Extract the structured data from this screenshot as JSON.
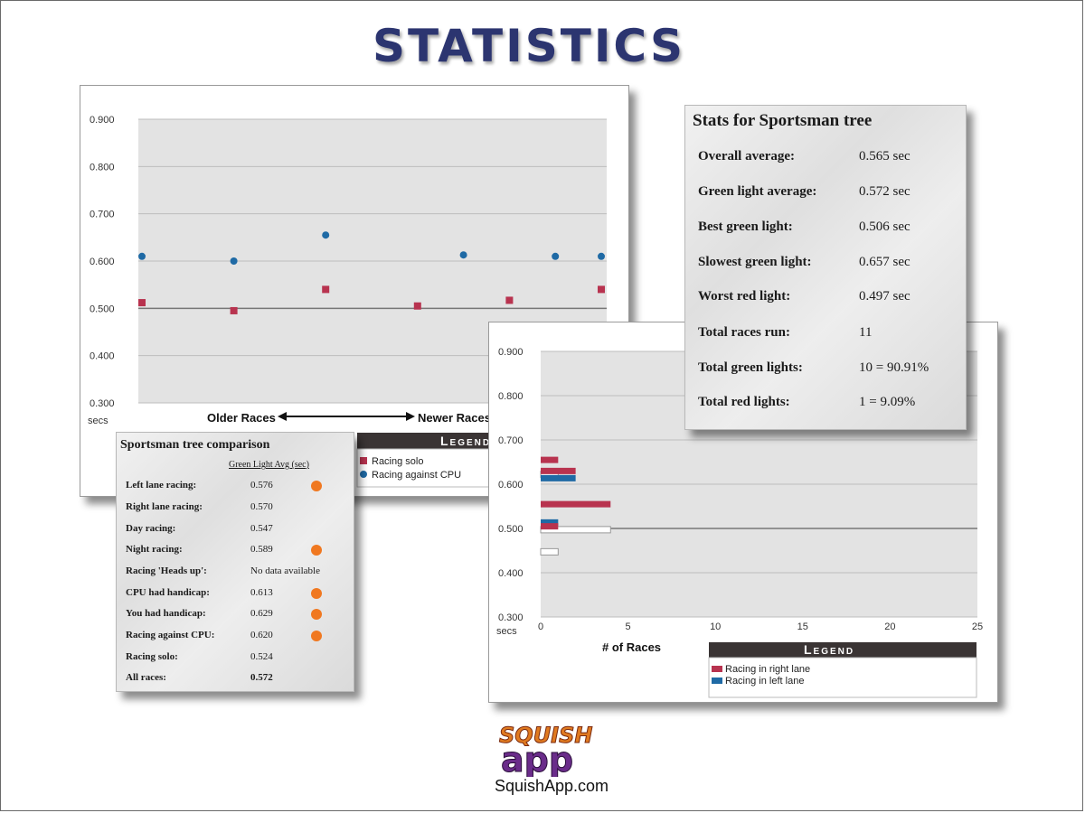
{
  "page": {
    "title": "STATISTICS"
  },
  "scatter": {
    "y_ticks": [
      "0.900",
      "0.800",
      "0.700",
      "0.600",
      "0.500",
      "0.400",
      "0.300"
    ],
    "units": "secs",
    "x_label_left": "Older Races",
    "x_label_right": "Newer Races",
    "legend_title": "Legend",
    "legend": [
      {
        "name": "Racing solo",
        "color": "#b8334f"
      },
      {
        "name": "Racing against CPU",
        "color": "#1f6aa5"
      }
    ]
  },
  "bars": {
    "y_ticks": [
      "0.900",
      "0.800",
      "0.700",
      "0.600",
      "0.500",
      "0.400",
      "0.300"
    ],
    "units": "secs",
    "x_ticks": [
      "0",
      "5",
      "10",
      "15",
      "20",
      "25"
    ],
    "x_label": "# of Races",
    "legend_title": "Legend",
    "legend": [
      {
        "name": "Racing in right lane",
        "color": "#b8334f"
      },
      {
        "name": "Racing in left lane",
        "color": "#1f6aa5"
      }
    ]
  },
  "stats": {
    "title": "Stats for Sportsman tree",
    "rows": [
      {
        "label": "Overall average:",
        "value": "0.565 sec"
      },
      {
        "label": "Green light average:",
        "value": "0.572 sec"
      },
      {
        "label": "Best green light:",
        "value": "0.506 sec"
      },
      {
        "label": "Slowest green light:",
        "value": "0.657 sec"
      },
      {
        "label": "Worst red light:",
        "value": "0.497 sec"
      },
      {
        "label": "Total races run:",
        "value": "11"
      },
      {
        "label": "Total green lights:",
        "value": "10 = 90.91%"
      },
      {
        "label": "Total red lights:",
        "value": "1 = 9.09%"
      }
    ]
  },
  "comparison": {
    "title": "Sportsman tree comparison",
    "column_header": "Green Light Avg (sec)",
    "rows": [
      {
        "label": "Left lane racing:",
        "value": "0.576",
        "dot": true
      },
      {
        "label": "Right lane racing:",
        "value": "0.570",
        "dot": false
      },
      {
        "label": "Day racing:",
        "value": "0.547",
        "dot": false
      },
      {
        "label": "Night racing:",
        "value": "0.589",
        "dot": true
      },
      {
        "label": "Racing 'Heads up':",
        "value": "No data available",
        "dot": false
      },
      {
        "label": "CPU had handicap:",
        "value": "0.613",
        "dot": true
      },
      {
        "label": "You had handicap:",
        "value": "0.629",
        "dot": true
      },
      {
        "label": "Racing against CPU:",
        "value": "0.620",
        "dot": true
      },
      {
        "label": "Racing solo:",
        "value": "0.524",
        "dot": false
      },
      {
        "label": "All races:",
        "value": "0.572",
        "dot": false
      }
    ]
  },
  "logo": {
    "word1": "SQUISH",
    "word2": "app",
    "site": "SquishApp.com"
  },
  "chart_data": [
    {
      "type": "scatter",
      "ylim": [
        0.3,
        0.9
      ],
      "ylabel": "secs",
      "xlabel": "Older Races ← → Newer Races",
      "series": [
        {
          "name": "Racing solo",
          "x": [
            1,
            3,
            5,
            7,
            9,
            11
          ],
          "values": [
            0.512,
            0.495,
            0.54,
            0.505,
            0.517,
            0.54
          ]
        },
        {
          "name": "Racing against CPU",
          "x": [
            1,
            3,
            5,
            8,
            10,
            11
          ],
          "values": [
            0.61,
            0.6,
            0.655,
            0.613,
            0.61,
            0.61
          ]
        }
      ]
    },
    {
      "type": "bar",
      "orientation": "horizontal",
      "ylim": [
        0.3,
        0.9
      ],
      "xlim": [
        0,
        25
      ],
      "ylabel": "secs",
      "xlabel": "# of Races",
      "categories": [
        "0.6875",
        "0.6625",
        "0.6375",
        "0.6125",
        "0.5875",
        "0.5625",
        "0.5375",
        "0.5125",
        "0.4875",
        "0.4625"
      ],
      "series": [
        {
          "name": "Racing in right lane",
          "values": [
            0,
            0,
            1,
            2,
            0,
            0,
            4,
            0,
            1,
            0
          ]
        },
        {
          "name": "Racing in left lane",
          "values": [
            0,
            0,
            0,
            2,
            0,
            0,
            0,
            1,
            0,
            0
          ]
        },
        {
          "name": "",
          "values": [
            0,
            0,
            1,
            0,
            0,
            0,
            0,
            4,
            0,
            1
          ]
        }
      ]
    }
  ]
}
